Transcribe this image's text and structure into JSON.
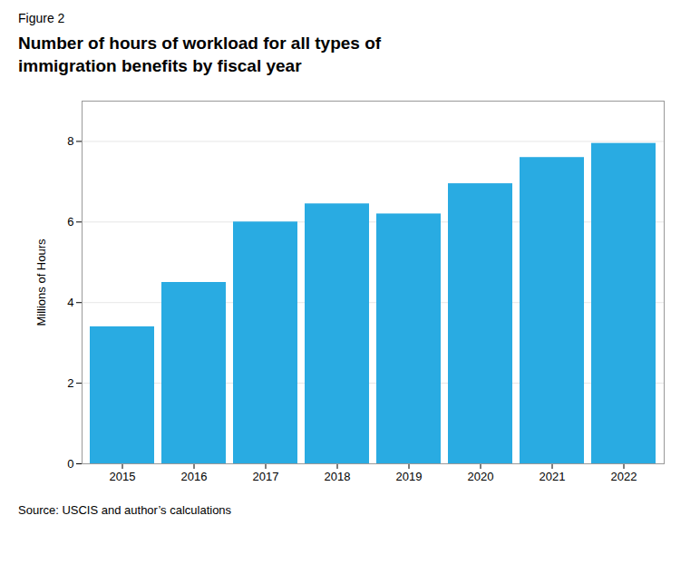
{
  "chart_data": {
    "type": "bar",
    "title": "Number of hours of workload for all types of\nimmigration benefits by fiscal year",
    "annotations": [
      "Figure 2",
      "Source: USCIS and author’s calculations"
    ],
    "ylabel": "Millions of Hours",
    "categories": [
      "2015",
      "2016",
      "2017",
      "2018",
      "2019",
      "2020",
      "2021",
      "2022"
    ],
    "values": [
      3.4,
      4.5,
      6.0,
      6.45,
      6.2,
      6.95,
      7.6,
      7.95
    ],
    "color": "#29ABE2",
    "ylim": [
      0,
      9
    ],
    "yticks": [
      0,
      2,
      4,
      6,
      8
    ],
    "grid": true
  }
}
